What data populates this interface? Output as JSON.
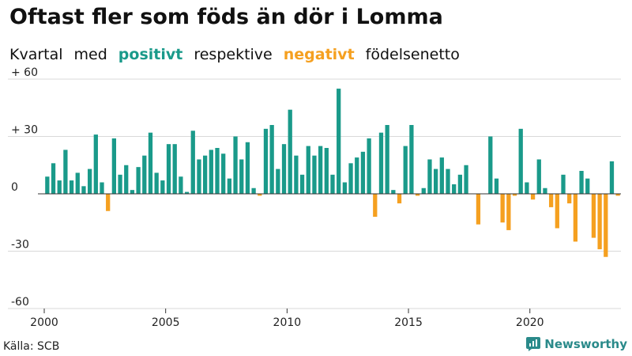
{
  "title": "Oftast fler som föds än dör i Lomma",
  "subtitle": {
    "part1": "Kvartal",
    "part2": "med",
    "positive_word": "positivt",
    "part3": "respektive",
    "negative_word": "negativt",
    "part4": "födelsenetto"
  },
  "source": "Källa: SCB",
  "brand": "Newsworthy",
  "colors": {
    "positive": "#1a9a8a",
    "negative": "#f5a020",
    "grid": "#d9d9d9",
    "baseline": "#333333",
    "brand": "#2a8a8a"
  },
  "chart_data": {
    "type": "bar",
    "x_start": 2000,
    "quarters_per_year": 4,
    "values": [
      9,
      16,
      7,
      23,
      7,
      11,
      4,
      13,
      31,
      6,
      -9,
      29,
      10,
      15,
      2,
      14,
      20,
      32,
      11,
      7,
      26,
      26,
      9,
      1,
      33,
      18,
      20,
      23,
      24,
      21,
      8,
      30,
      18,
      27,
      3,
      -1,
      34,
      36,
      13,
      26,
      44,
      20,
      10,
      25,
      20,
      25,
      24,
      10,
      55,
      6,
      16,
      19,
      22,
      29,
      -12,
      32,
      36,
      2,
      -5,
      25,
      36,
      -1,
      3,
      18,
      13,
      19,
      13,
      5,
      10,
      15,
      0,
      -16,
      0,
      30,
      8,
      -15,
      -19,
      -1,
      34,
      6,
      -3,
      18,
      3,
      -7,
      -18,
      10,
      -5,
      -25,
      12,
      8,
      -23,
      -29,
      -33,
      17,
      -1
    ],
    "ylim": [
      -60,
      60
    ],
    "yticks": [
      {
        "value": 60,
        "label": "+ 60"
      },
      {
        "value": 30,
        "label": "+ 30"
      },
      {
        "value": 0,
        "label": "0"
      },
      {
        "value": -30,
        "label": "-30"
      },
      {
        "value": -60,
        "label": "-60"
      }
    ],
    "xticks": [
      {
        "value": 2000,
        "label": "2000"
      },
      {
        "value": 2005,
        "label": "2005"
      },
      {
        "value": 2010,
        "label": "2010"
      },
      {
        "value": 2015,
        "label": "2015"
      },
      {
        "value": 2020,
        "label": "2020"
      }
    ],
    "grid": true
  }
}
